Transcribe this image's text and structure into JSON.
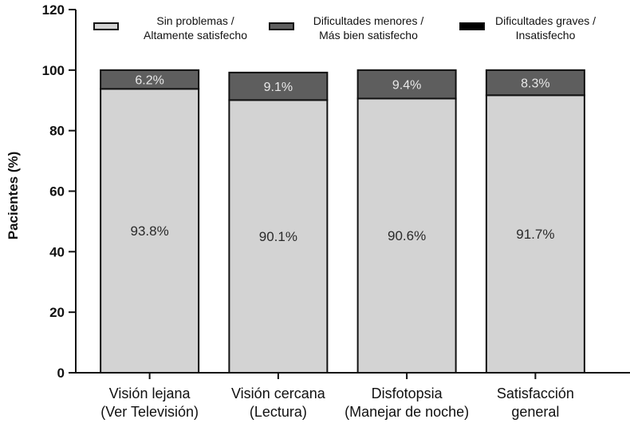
{
  "chart_data": {
    "type": "bar",
    "stacked": true,
    "ylabel": "Pacientes (%)",
    "xlabel": "",
    "ylim": [
      0,
      120
    ],
    "yticks": [
      "0",
      "20",
      "40",
      "60",
      "80",
      "100",
      "120"
    ],
    "grid": false,
    "legend_position": "top",
    "categories": [
      [
        "Visión lejana",
        "(Ver Televisión)"
      ],
      [
        "Visión cercana",
        "(Lectura)"
      ],
      [
        "Disfotopsia",
        "(Manejar de noche)"
      ],
      [
        "Satisfacción",
        "general"
      ]
    ],
    "series": [
      {
        "name": [
          "Sin problemas /",
          "Altamente satisfecho"
        ],
        "color": "#d3d3d3",
        "values": [
          93.8,
          90.1,
          90.6,
          91.7
        ],
        "labels": [
          "93.8%",
          "90.1%",
          "90.6%",
          "91.7%"
        ]
      },
      {
        "name": [
          "Dificultades menores /",
          "Más bien satisfecho"
        ],
        "color": "#5e5e5e",
        "values": [
          6.2,
          9.1,
          9.4,
          8.3
        ],
        "labels": [
          "6.2%",
          "9.1%",
          "9.4%",
          "8.3%"
        ]
      },
      {
        "name": [
          "Dificultades graves /",
          "Insatisfecho"
        ],
        "color": "#000000",
        "values": [
          0,
          0,
          0,
          0
        ],
        "labels": [
          "",
          "",
          "",
          ""
        ]
      }
    ]
  }
}
